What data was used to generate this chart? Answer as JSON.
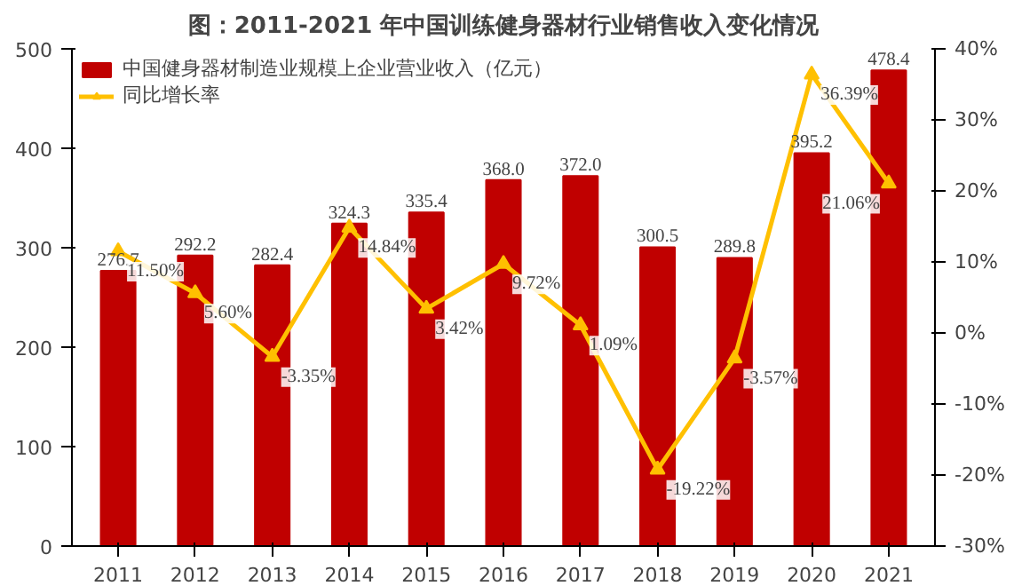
{
  "chart_data": {
    "type": "bar",
    "title": "图：2011-2021 年中国训练健身器材行业销售收入变化情况",
    "categories": [
      "2011",
      "2012",
      "2013",
      "2014",
      "2015",
      "2016",
      "2017",
      "2018",
      "2019",
      "2020",
      "2021"
    ],
    "series": [
      {
        "name": "中国健身器材制造业规模上企业营业收入（亿元）",
        "color": "#c00000",
        "values": [
          276.7,
          292.2,
          282.4,
          324.3,
          335.4,
          368.0,
          372.0,
          300.5,
          289.8,
          395.2,
          478.4
        ],
        "value_labels": [
          "276.7",
          "292.2",
          "282.4",
          "324.3",
          "335.4",
          "368.0",
          "372.0",
          "300.5",
          "289.8",
          "395.2",
          "478.4"
        ]
      },
      {
        "name": "同比增长率",
        "type": "line",
        "axis": "y2",
        "color": "#ffc000",
        "marker": "triangle",
        "line_style": "solid",
        "values": [
          11.5,
          5.6,
          -3.35,
          14.84,
          3.42,
          9.72,
          1.09,
          -19.22,
          -3.57,
          36.39,
          21.06
        ],
        "value_labels": [
          "11.50%",
          "5.60%",
          "-3.35%",
          "14.84%",
          "3.42%",
          "9.72%",
          "1.09%",
          "-19.22%",
          "-3.57%",
          "36.39%",
          "21.06%"
        ]
      }
    ],
    "ylim": [
      0,
      500
    ],
    "yticks": [
      0,
      100,
      200,
      300,
      400,
      500
    ],
    "y2lim": [
      -30,
      40
    ],
    "y2ticks": [
      {
        "value": -30,
        "label": "-30%"
      },
      {
        "value": -20,
        "label": "-20%"
      },
      {
        "value": -10,
        "label": "-10%"
      },
      {
        "value": 0,
        "label": "0%"
      },
      {
        "value": 10,
        "label": "10%"
      },
      {
        "value": 20,
        "label": "20%"
      },
      {
        "value": 30,
        "label": "30%"
      },
      {
        "value": 40,
        "label": "40%"
      }
    ],
    "grid": false,
    "legend": "top left"
  }
}
